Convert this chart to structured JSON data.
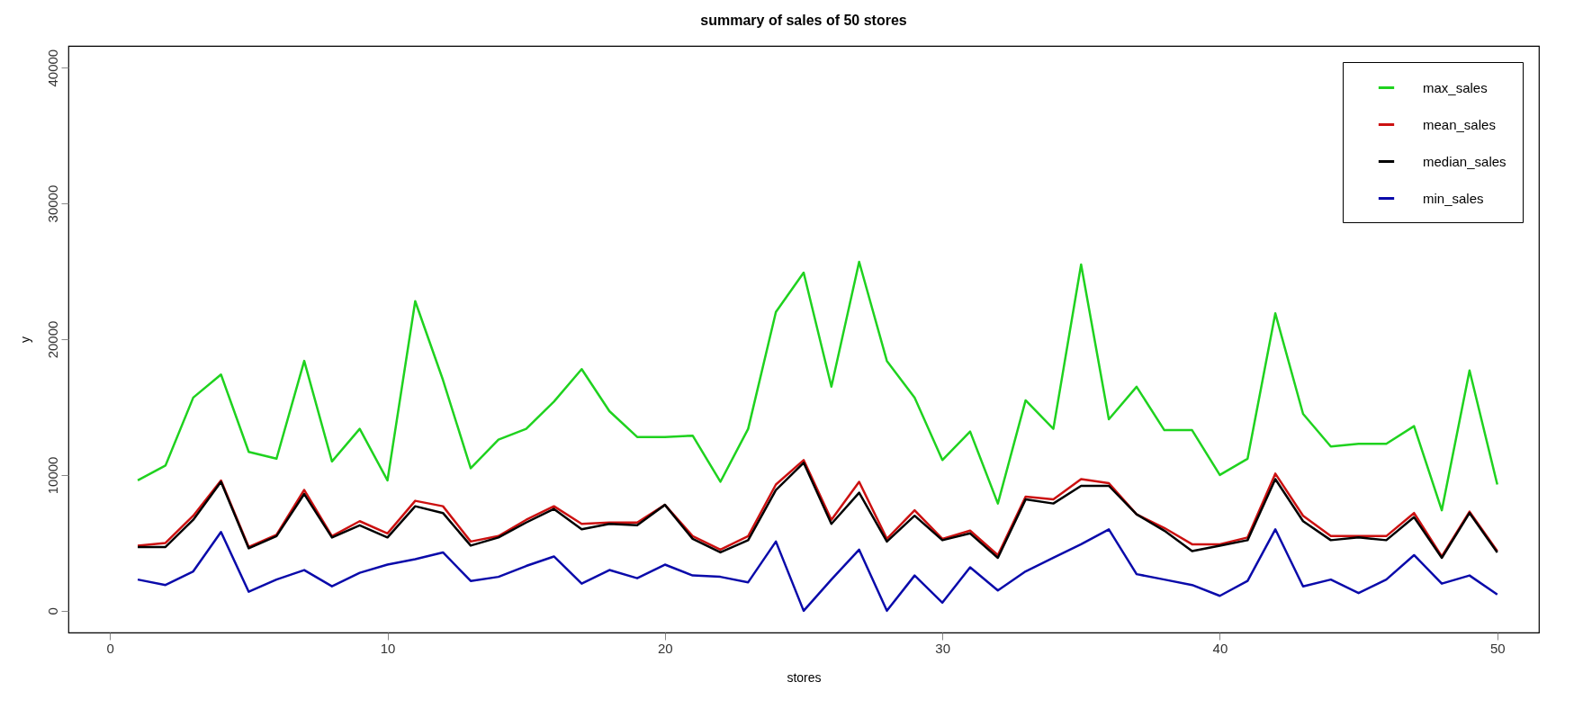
{
  "chart_data": {
    "type": "line",
    "title": "summary of sales of 50 stores",
    "xlabel": "stores",
    "ylabel": "y",
    "x": [
      1,
      2,
      3,
      4,
      5,
      6,
      7,
      8,
      9,
      10,
      11,
      12,
      13,
      14,
      15,
      16,
      17,
      18,
      19,
      20,
      21,
      22,
      23,
      24,
      25,
      26,
      27,
      28,
      29,
      30,
      31,
      32,
      33,
      34,
      35,
      36,
      37,
      38,
      39,
      40,
      41,
      42,
      43,
      44,
      45,
      46,
      47,
      48,
      49,
      50
    ],
    "series": [
      {
        "name": "max_sales",
        "color": "#1fd21f",
        "values": [
          9600,
          10700,
          15700,
          17400,
          11700,
          11200,
          18400,
          11000,
          13400,
          9600,
          22800,
          17000,
          10500,
          12600,
          13400,
          15400,
          17800,
          14700,
          12800,
          12800,
          12900,
          9500,
          13400,
          22000,
          24900,
          16500,
          25700,
          18400,
          15700,
          11100,
          13200,
          7900,
          15500,
          13400,
          25500,
          14100,
          16500,
          13300,
          13300,
          10000,
          11200,
          21900,
          14500,
          12100,
          12300,
          12300,
          13600,
          7400,
          17700,
          9300
        ]
      },
      {
        "name": "mean_sales",
        "color": "#cc1111",
        "values": [
          4800,
          5000,
          7000,
          9600,
          4700,
          5600,
          8900,
          5500,
          6600,
          5700,
          8100,
          7700,
          5100,
          5500,
          6700,
          7700,
          6400,
          6500,
          6500,
          7800,
          5500,
          4500,
          5500,
          9300,
          11100,
          6700,
          9500,
          5300,
          7400,
          5300,
          5900,
          4100,
          8400,
          8200,
          9700,
          9400,
          7100,
          6100,
          4900,
          4900,
          5400,
          10100,
          7000,
          5500,
          5500,
          5500,
          7200,
          4000,
          7300,
          4400
        ]
      },
      {
        "name": "median_sales",
        "color": "#000000",
        "values": [
          4700,
          4700,
          6700,
          9500,
          4600,
          5500,
          8600,
          5400,
          6300,
          5400,
          7700,
          7200,
          4800,
          5400,
          6500,
          7500,
          6000,
          6400,
          6300,
          7800,
          5300,
          4300,
          5200,
          8900,
          10900,
          6400,
          8700,
          5100,
          7000,
          5200,
          5700,
          3900,
          8200,
          7900,
          9200,
          9200,
          7100,
          5900,
          4400,
          4800,
          5200,
          9700,
          6600,
          5200,
          5400,
          5200,
          6900,
          3900,
          7200,
          4300
        ]
      },
      {
        "name": "min_sales",
        "color": "#0a0aaa",
        "values": [
          2300,
          1900,
          2900,
          5800,
          1400,
          2300,
          3000,
          1800,
          2800,
          3400,
          3800,
          4300,
          2200,
          2500,
          3300,
          4000,
          2000,
          3000,
          2400,
          3400,
          2600,
          2500,
          2100,
          5100,
          0,
          2300,
          4500,
          0,
          2600,
          600,
          3200,
          1500,
          2900,
          3900,
          4900,
          6000,
          2700,
          2300,
          1900,
          1100,
          2200,
          6000,
          1800,
          2300,
          1300,
          2300,
          4100,
          2000,
          2600,
          1200
        ]
      }
    ],
    "xlim": [
      -1.5,
      51.5
    ],
    "xticks": [
      0,
      10,
      20,
      30,
      40,
      50
    ],
    "ylim": [
      -1600,
      41600
    ],
    "yticks": [
      0,
      10000,
      20000,
      30000,
      40000
    ],
    "grid": false,
    "legend": "top right",
    "marker": "none",
    "line_style": "solid"
  }
}
